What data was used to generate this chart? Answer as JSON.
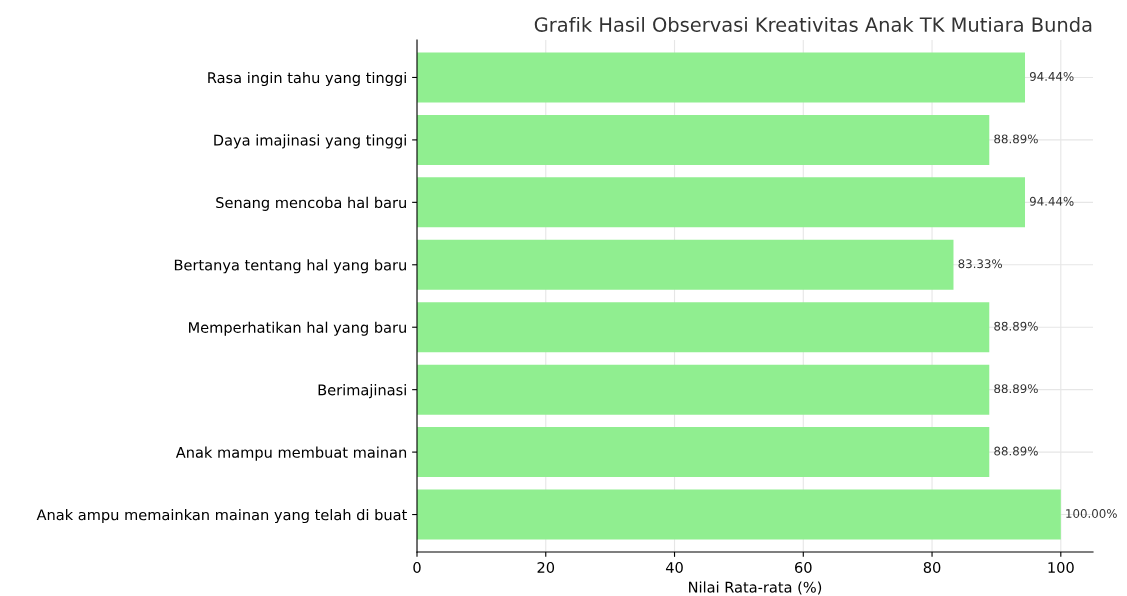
{
  "chart_data": {
    "type": "bar",
    "orientation": "horizontal",
    "title": "Grafik Hasil Observasi Kreativitas Anak TK Mutiara Bunda",
    "xlabel": "Nilai Rata-rata (%)",
    "categories": [
      "Rasa ingin tahu yang tinggi",
      "Daya imajinasi yang tinggi",
      "Senang mencoba hal baru",
      "Bertanya tentang hal yang baru",
      "Memperhatikan hal yang baru",
      "Berimajinasi",
      "Anak mampu membuat mainan",
      "Anak ampu memainkan mainan yang telah di buat"
    ],
    "values": [
      94.44,
      88.89,
      94.44,
      83.33,
      88.89,
      88.89,
      88.89,
      100.0
    ],
    "value_labels": [
      "94.44%",
      "88.89%",
      "94.44%",
      "83.33%",
      "88.89%",
      "88.89%",
      "88.89%",
      "100.00%"
    ],
    "color": "#90ee90",
    "xlim": [
      0,
      105
    ],
    "xticks": [
      0,
      20,
      40,
      60,
      80,
      100
    ],
    "grid": true
  }
}
